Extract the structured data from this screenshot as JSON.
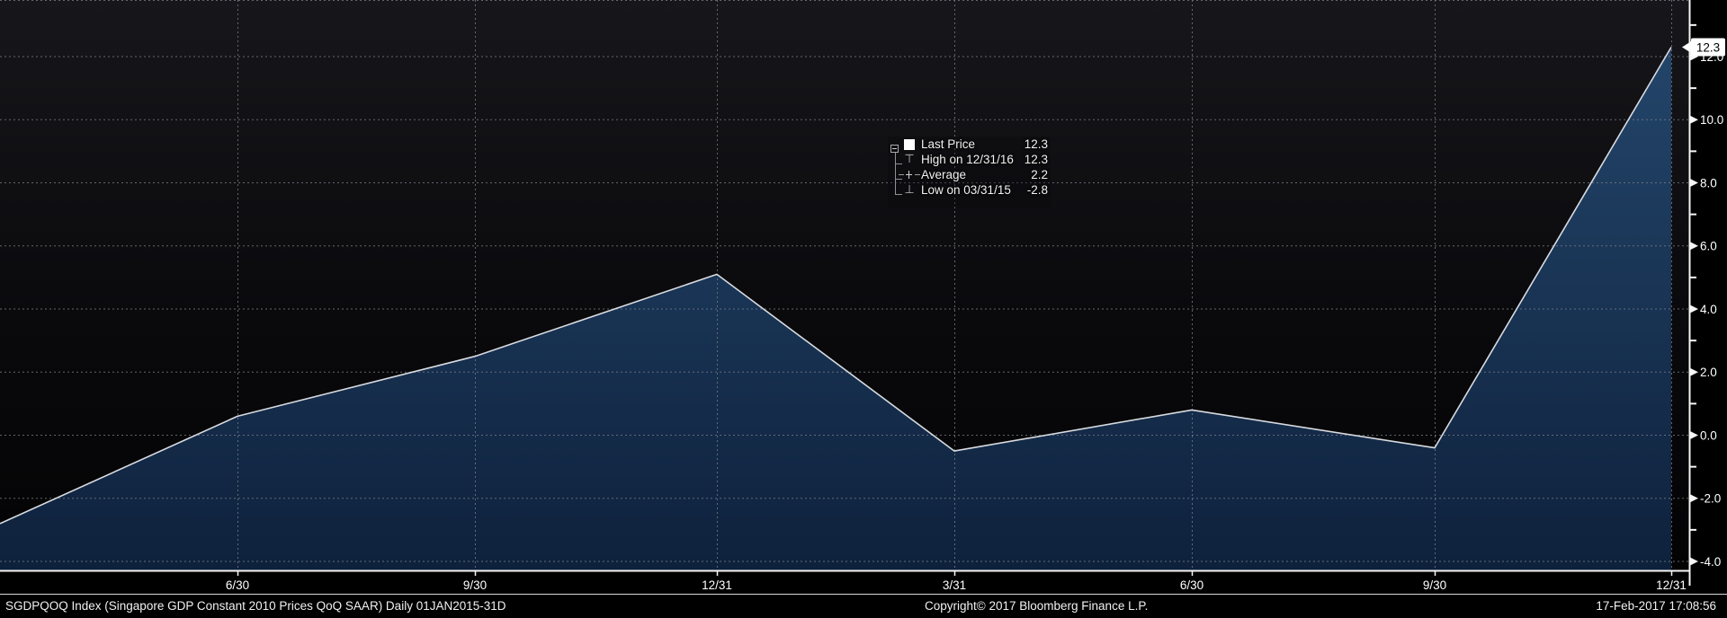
{
  "chart_data": {
    "type": "area",
    "title": "SGDPQOQ Index (Singapore GDP Constant 2010 Prices QoQ SAAR)",
    "x": [
      "03/31/15",
      "06/30/15",
      "09/30/15",
      "12/31/15",
      "03/31/16",
      "06/30/16",
      "09/30/16",
      "12/31/16"
    ],
    "values": [
      -2.8,
      0.6,
      2.5,
      5.1,
      -0.5,
      0.8,
      -0.4,
      12.3
    ],
    "last_price": 12.3,
    "high": 12.3,
    "high_date": "12/31/16",
    "average": 2.2,
    "low": -2.8,
    "low_date": "03/31/15",
    "x_tick_labels": [
      "6/30",
      "9/30",
      "12/31",
      "3/31",
      "6/30",
      "9/30",
      "12/31"
    ],
    "y_tick_values": [
      12,
      10,
      8,
      6,
      4,
      2,
      0,
      -2,
      -4
    ],
    "y_tick_labels": [
      "12.0",
      "10.0",
      "8.0",
      "6.0",
      "4.0",
      "2.0",
      "0.0",
      "-2.0",
      "-4.0"
    ],
    "ylim": [
      -4.3,
      13.8
    ],
    "grid": true,
    "legend_position": "center"
  },
  "legend": {
    "rows": [
      {
        "marker": "last-price-square",
        "label": "Last Price",
        "value": "12.3"
      },
      {
        "marker": "high",
        "label": "High on 12/31/16",
        "value": "12.3"
      },
      {
        "marker": "average",
        "label": "Average",
        "value": "2.2"
      },
      {
        "marker": "low",
        "label": "Low on 03/31/15",
        "value": "-2.8"
      }
    ]
  },
  "axis_callout": {
    "last_price_label": "12.3"
  },
  "footer": {
    "left": "SGDPQOQ Index (Singapore GDP Constant 2010 Prices QoQ SAAR)  Daily 01JAN2015-31D",
    "center": "Copyright© 2017 Bloomberg Finance L.P.",
    "right": "17-Feb-2017 17:08:56"
  },
  "colors": {
    "background_top": "#17171b",
    "background_mid": "#0a0a0d",
    "background_bottom": "#030304",
    "area_fill_top": "#23456a",
    "area_fill_bottom": "#0e213c",
    "line": "#d8dbe0",
    "grid": "#797c84",
    "axis": "#f5f5f5",
    "tick_label": "#ffffff",
    "callout_bg": "#ffffff",
    "callout_text": "#000000"
  }
}
